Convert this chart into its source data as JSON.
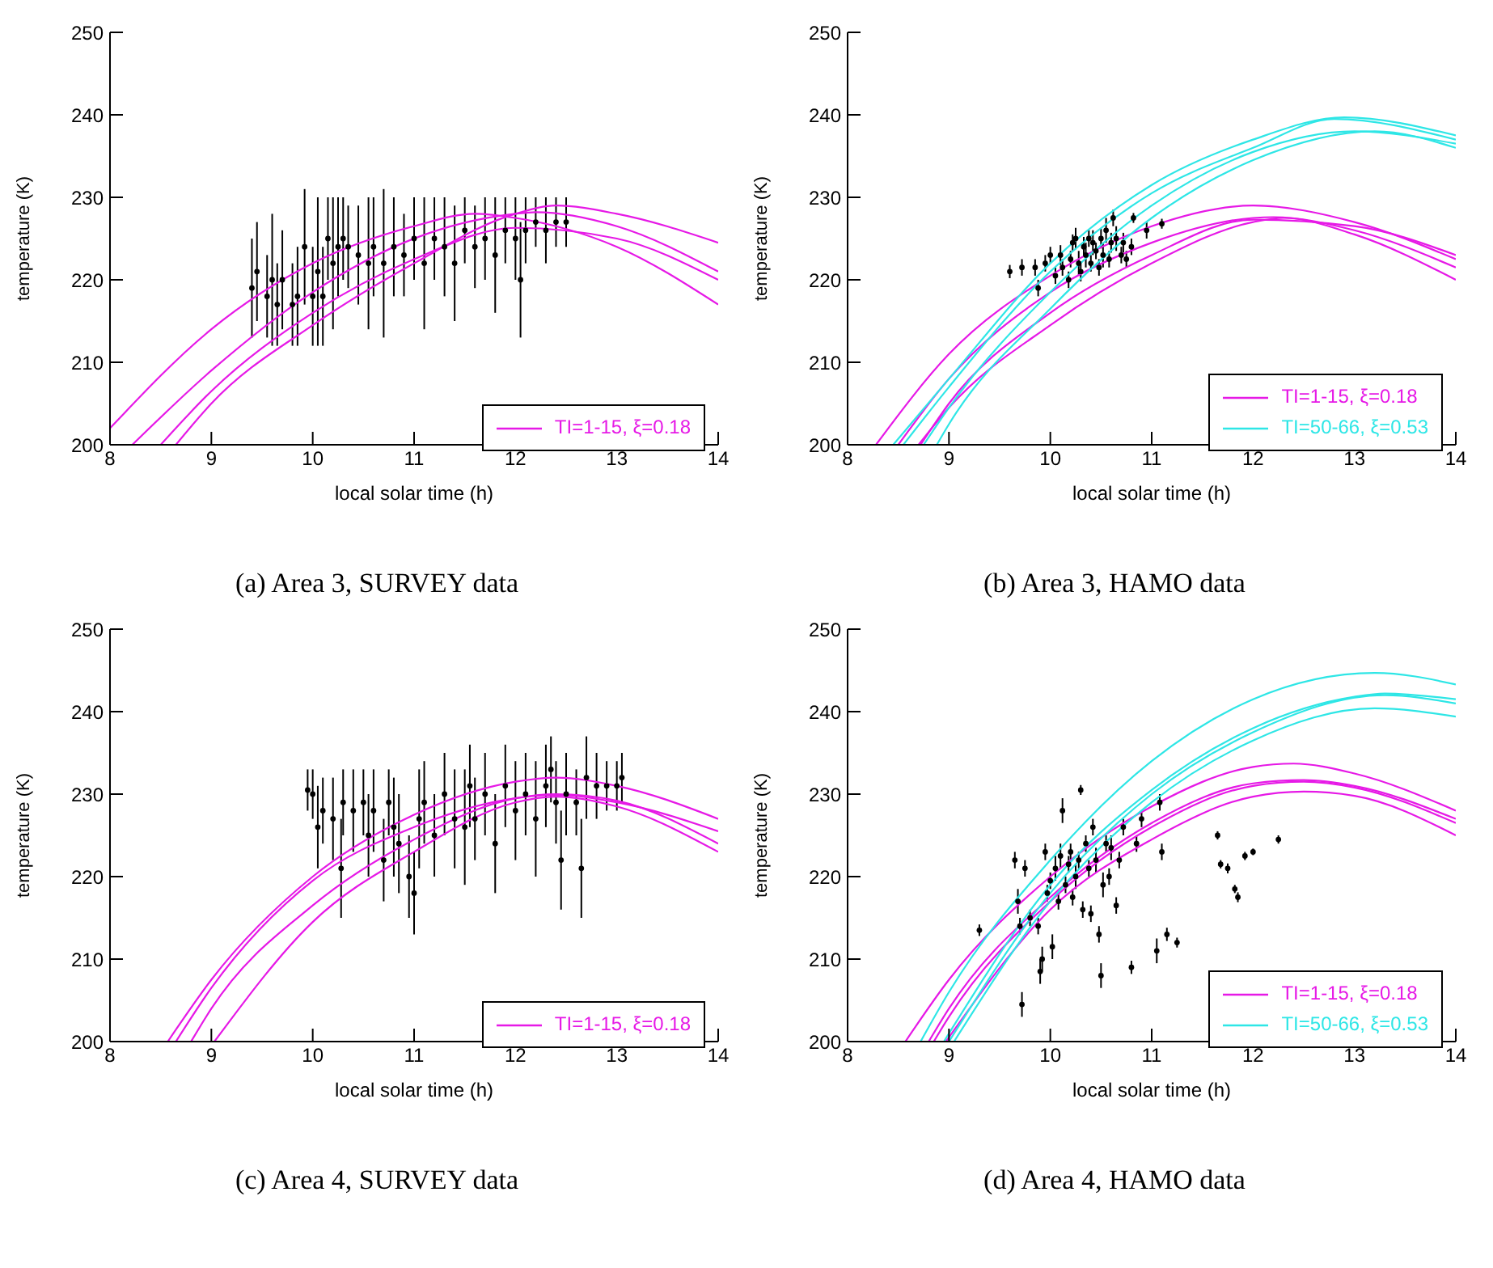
{
  "chart_data": [
    {
      "type": "line",
      "title": "(a) Area 3, SURVEY data",
      "xlabel": "local solar time (h)",
      "ylabel": "temperature (K)",
      "xlim": [
        8,
        14
      ],
      "ylim": [
        200,
        250
      ],
      "xticks": [
        8,
        9,
        10,
        11,
        12,
        13,
        14
      ],
      "yticks": [
        200,
        210,
        220,
        230,
        240,
        250
      ],
      "legend": "bottom right",
      "marker": "none",
      "series": [
        {
          "type": "scatter",
          "marker": "circle",
          "color": "#000000",
          "x": [
            9.4,
            9.45,
            9.55,
            9.6,
            9.65,
            9.7,
            9.8,
            9.85,
            9.92,
            10.0,
            10.05,
            10.1,
            10.15,
            10.2,
            10.25,
            10.3,
            10.35,
            10.45,
            10.55,
            10.6,
            10.7,
            10.8,
            10.9,
            11.0,
            11.1,
            11.2,
            11.3,
            11.4,
            11.5,
            11.6,
            11.7,
            11.8,
            11.9,
            12.0,
            12.05,
            12.1,
            12.2,
            12.3,
            12.4,
            12.5
          ],
          "values": [
            219,
            221,
            218,
            220,
            217,
            220,
            217,
            218,
            224,
            218,
            221,
            218,
            225,
            222,
            224,
            225,
            224,
            223,
            222,
            224,
            222,
            224,
            223,
            225,
            222,
            225,
            224,
            222,
            226,
            224,
            225,
            223,
            226,
            225,
            220,
            226,
            227,
            226,
            227,
            227
          ],
          "errors": [
            6,
            6,
            5,
            8,
            5,
            6,
            5,
            6,
            7,
            6,
            9,
            6,
            5,
            8,
            6,
            5,
            5,
            6,
            8,
            6,
            9,
            6,
            5,
            5,
            8,
            5,
            6,
            7,
            4,
            5,
            5,
            7,
            4,
            5,
            7,
            4,
            3,
            4,
            3,
            3
          ]
        },
        {
          "name": "TI=1-15, ξ=0.18",
          "color": "#e619e6",
          "x": [
            8,
            9,
            10,
            11,
            11.6,
            12,
            13,
            14
          ],
          "values": [
            202,
            214,
            222,
            226.5,
            228,
            227.5,
            224,
            217
          ]
        },
        {
          "color": "#e619e6",
          "x": [
            8.22,
            9,
            10,
            11,
            12,
            12.2,
            13,
            14
          ],
          "values": [
            200,
            209,
            218.5,
            225,
            228,
            228.2,
            226.5,
            221
          ]
        },
        {
          "color": "#e619e6",
          "x": [
            8.5,
            9,
            10,
            11,
            12,
            13,
            14
          ],
          "values": [
            200,
            206.5,
            216,
            222.5,
            226.3,
            225,
            220
          ]
        },
        {
          "color": "#e619e6",
          "x": [
            8.65,
            9,
            10,
            11,
            12,
            12.4,
            13,
            14
          ],
          "values": [
            200,
            205,
            214.5,
            222,
            228,
            229,
            228,
            224.5
          ]
        }
      ]
    },
    {
      "type": "line",
      "title": "(b) Area 3, HAMO data",
      "xlabel": "local solar time (h)",
      "ylabel": "temperature (K)",
      "xlim": [
        8,
        14
      ],
      "ylim": [
        200,
        250
      ],
      "xticks": [
        8,
        9,
        10,
        11,
        12,
        13,
        14
      ],
      "yticks": [
        200,
        210,
        220,
        230,
        240,
        250
      ],
      "legend": "bottom right",
      "marker": "none",
      "series": [
        {
          "type": "scatter",
          "marker": "circle",
          "color": "#000000",
          "x": [
            9.6,
            9.72,
            9.85,
            9.88,
            9.95,
            10.0,
            10.05,
            10.1,
            10.12,
            10.18,
            10.2,
            10.22,
            10.25,
            10.28,
            10.3,
            10.33,
            10.35,
            10.38,
            10.4,
            10.42,
            10.45,
            10.48,
            10.5,
            10.52,
            10.55,
            10.58,
            10.6,
            10.62,
            10.65,
            10.7,
            10.72,
            10.75,
            10.8,
            10.82,
            10.95,
            11.1
          ],
          "values": [
            221,
            221.5,
            221.5,
            219,
            222,
            223,
            220.5,
            223,
            221.5,
            220,
            222.5,
            224.5,
            225,
            222,
            221,
            224,
            223,
            225,
            222,
            224.5,
            223.5,
            221.5,
            225,
            223,
            226,
            222.5,
            224.5,
            227.5,
            225,
            223,
            224.5,
            222.5,
            224,
            227.5,
            226,
            226.8
          ],
          "errors": [
            0.8,
            1,
            1,
            1,
            1,
            1,
            1,
            1.2,
            1,
            1,
            1,
            1,
            1.3,
            1.5,
            1.2,
            1.2,
            1.5,
            1,
            1,
            1.5,
            1,
            1,
            1.2,
            1.5,
            1.5,
            1,
            1.2,
            1,
            1.5,
            1,
            1.2,
            1,
            1,
            0.6,
            1,
            0.6
          ]
        },
        {
          "name": "TI=1-15, ξ=0.18",
          "color": "#e619e6",
          "x": [
            8.28,
            9,
            10,
            11,
            12,
            13,
            14
          ],
          "values": [
            200,
            211,
            220.5,
            226.5,
            229,
            227,
            222.5
          ]
        },
        {
          "color": "#e619e6",
          "x": [
            8.5,
            9,
            10,
            11,
            12,
            12.2,
            13,
            14
          ],
          "values": [
            200,
            208,
            218.5,
            224.5,
            227.5,
            227.6,
            226,
            221.5
          ]
        },
        {
          "color": "#e619e6",
          "x": [
            8.72,
            9,
            10,
            11,
            12,
            13,
            14
          ],
          "values": [
            200,
            205,
            216,
            223,
            227.3,
            226.5,
            223
          ]
        },
        {
          "color": "#e619e6",
          "x": [
            8.7,
            9,
            10,
            11,
            12,
            12.3,
            13,
            14
          ],
          "values": [
            200,
            204.5,
            214.5,
            222,
            227,
            227.5,
            225.5,
            220
          ]
        },
        {
          "name": "TI=50-66, ξ=0.53",
          "color": "#2ee6e6",
          "x": [
            8.45,
            9,
            10,
            11,
            12,
            12.9,
            14
          ],
          "values": [
            200,
            208,
            222,
            231.5,
            237,
            239.7,
            237.5
          ]
        },
        {
          "color": "#2ee6e6",
          "x": [
            8.55,
            9,
            10,
            11,
            12,
            12.8,
            14
          ],
          "values": [
            200,
            207,
            221,
            230.5,
            236,
            239.5,
            237
          ]
        },
        {
          "color": "#2ee6e6",
          "x": [
            8.75,
            9,
            10,
            11,
            12,
            13,
            14
          ],
          "values": [
            200,
            204.5,
            218.5,
            229,
            235.5,
            238,
            236.5
          ]
        },
        {
          "color": "#2ee6e6",
          "x": [
            8.88,
            9,
            10,
            11,
            12,
            13.2,
            14
          ],
          "values": [
            200,
            202.5,
            216.5,
            227.5,
            234.5,
            238,
            236
          ]
        }
      ]
    },
    {
      "type": "line",
      "title": "(c) Area 4, SURVEY data",
      "xlabel": "local solar time (h)",
      "ylabel": "temperature (K)",
      "xlim": [
        8,
        14
      ],
      "ylim": [
        200,
        250
      ],
      "xticks": [
        8,
        9,
        10,
        11,
        12,
        13,
        14
      ],
      "yticks": [
        200,
        210,
        220,
        230,
        240,
        250
      ],
      "legend": "bottom right",
      "marker": "none",
      "series": [
        {
          "type": "scatter",
          "marker": "circle",
          "color": "#000000",
          "x": [
            9.95,
            10.0,
            10.05,
            10.1,
            10.2,
            10.28,
            10.3,
            10.4,
            10.5,
            10.55,
            10.6,
            10.7,
            10.75,
            10.8,
            10.85,
            10.95,
            11.0,
            11.05,
            11.1,
            11.2,
            11.3,
            11.4,
            11.5,
            11.55,
            11.6,
            11.7,
            11.8,
            11.9,
            12.0,
            12.1,
            12.2,
            12.3,
            12.35,
            12.4,
            12.45,
            12.5,
            12.6,
            12.65,
            12.7,
            12.8,
            12.9,
            13.0,
            13.05
          ],
          "values": [
            230.5,
            230,
            226,
            228,
            227,
            221,
            229,
            228,
            229,
            225,
            228,
            222,
            229,
            226,
            224,
            220,
            218,
            227,
            229,
            225,
            230,
            227,
            226,
            231,
            227,
            230,
            224,
            231,
            228,
            230,
            227,
            231,
            233,
            229,
            222,
            230,
            229,
            221,
            232,
            231,
            231,
            231,
            232
          ],
          "errors": [
            2.5,
            3,
            5,
            4,
            5,
            6,
            4,
            5,
            4,
            5,
            5,
            5,
            4,
            6,
            6,
            5,
            5,
            6,
            5,
            5,
            5,
            6,
            7,
            5,
            5,
            5,
            6,
            5,
            6,
            5,
            7,
            5,
            4,
            5,
            6,
            5,
            4,
            6,
            5,
            4,
            3,
            3,
            3
          ]
        },
        {
          "name": "TI=1-15, ξ=0.18",
          "color": "#e619e6",
          "x": [
            8.57,
            9,
            10,
            11,
            12,
            12.4,
            13,
            14
          ],
          "values": [
            200,
            207.5,
            220,
            227.5,
            231.5,
            232,
            231,
            227
          ]
        },
        {
          "color": "#e619e6",
          "x": [
            8.65,
            9,
            10,
            11,
            12,
            12.4,
            13,
            14
          ],
          "values": [
            200,
            206.5,
            219.5,
            226,
            229.5,
            229.9,
            229,
            225.5
          ]
        },
        {
          "color": "#e619e6",
          "x": [
            8.8,
            9,
            10,
            11,
            12,
            12.4,
            13,
            14
          ],
          "values": [
            200,
            204,
            216.5,
            224.5,
            229.5,
            230,
            229.2,
            224
          ]
        },
        {
          "color": "#e619e6",
          "x": [
            9.03,
            10,
            11,
            12,
            12.4,
            13,
            14
          ],
          "values": [
            200,
            214.5,
            223,
            229,
            229.7,
            228.5,
            223
          ]
        }
      ]
    },
    {
      "type": "line",
      "title": "(d) Area 4, HAMO data",
      "xlabel": "local solar time (h)",
      "ylabel": "temperature (K)",
      "xlim": [
        8,
        14
      ],
      "ylim": [
        200,
        250
      ],
      "xticks": [
        8,
        9,
        10,
        11,
        12,
        13,
        14
      ],
      "yticks": [
        200,
        210,
        220,
        230,
        240,
        250
      ],
      "legend": "bottom right",
      "marker": "none",
      "series": [
        {
          "type": "scatter",
          "marker": "circle",
          "color": "#000000",
          "x": [
            9.3,
            9.65,
            9.68,
            9.7,
            9.72,
            9.75,
            9.8,
            9.88,
            9.9,
            9.92,
            9.95,
            9.97,
            10.0,
            10.02,
            10.05,
            10.08,
            10.1,
            10.12,
            10.15,
            10.18,
            10.2,
            10.22,
            10.25,
            10.28,
            10.3,
            10.32,
            10.35,
            10.38,
            10.4,
            10.42,
            10.45,
            10.48,
            10.5,
            10.52,
            10.55,
            10.58,
            10.6,
            10.65,
            10.68,
            10.72,
            10.8,
            10.85,
            10.9,
            11.05,
            11.08,
            11.1,
            11.15,
            11.25,
            11.65,
            11.68,
            11.75,
            11.82,
            11.85,
            11.92,
            12.0,
            12.25
          ],
          "values": [
            213.5,
            222,
            217,
            214,
            204.5,
            221,
            215,
            214,
            208.5,
            210,
            223,
            218,
            219.5,
            211.5,
            221,
            217,
            222.5,
            228,
            219,
            221.5,
            223,
            217.5,
            220,
            222,
            230.5,
            216,
            224,
            221,
            215.5,
            226,
            222,
            213,
            208,
            219,
            224,
            220,
            223.5,
            216.5,
            222,
            226,
            209,
            224,
            227,
            211,
            229,
            223,
            213,
            212,
            225,
            221.5,
            221,
            218.5,
            217.5,
            222.5,
            223,
            224.5
          ],
          "errors": [
            0.7,
            1,
            1.5,
            1,
            1.5,
            1,
            1,
            1,
            1.5,
            1.5,
            1,
            1,
            1,
            1.5,
            1.5,
            1,
            1.5,
            1.5,
            1,
            1,
            1,
            1,
            1.5,
            1,
            0.6,
            1,
            1,
            1,
            1,
            1,
            1.5,
            1,
            1.5,
            1.5,
            1,
            1,
            1.5,
            1,
            1,
            1,
            0.8,
            1,
            1,
            1.5,
            1,
            1,
            0.8,
            0.6,
            0.5,
            0.5,
            0.6,
            0.5,
            0.6,
            0.5,
            0.4,
            0.5
          ]
        },
        {
          "name": "TI=1-15, ξ=0.18",
          "color": "#e619e6",
          "x": [
            8.57,
            9,
            10,
            11,
            12,
            12.4,
            13,
            14
          ],
          "values": [
            200,
            207.5,
            220,
            228.5,
            233.3,
            233.7,
            232.5,
            228
          ]
        },
        {
          "color": "#e619e6",
          "x": [
            8.8,
            9,
            10,
            11,
            12,
            12.5,
            13,
            14
          ],
          "values": [
            200,
            204,
            217.5,
            226.5,
            231.3,
            231.7,
            231,
            227
          ]
        },
        {
          "color": "#e619e6",
          "x": [
            8.85,
            9,
            10,
            11,
            12,
            12.5,
            13,
            14
          ],
          "values": [
            200,
            203,
            217,
            226,
            231,
            231.5,
            230.8,
            226.5
          ]
        },
        {
          "color": "#e619e6",
          "x": [
            8.97,
            10,
            11,
            12,
            12.5,
            13,
            14
          ],
          "values": [
            200,
            216,
            224.5,
            229.7,
            230.3,
            229.8,
            225
          ]
        },
        {
          "name": "TI=50-66, ξ=0.53",
          "color": "#2ee6e6",
          "x": [
            8.72,
            9,
            10,
            11,
            12,
            13.2,
            14
          ],
          "values": [
            200,
            206,
            222,
            234,
            241.5,
            244.7,
            243.3
          ]
        },
        {
          "color": "#2ee6e6",
          "x": [
            8.95,
            10,
            11,
            12,
            13,
            13.3,
            14
          ],
          "values": [
            200,
            219,
            230.5,
            238,
            241.8,
            242.2,
            241.5
          ]
        },
        {
          "color": "#2ee6e6",
          "x": [
            9.0,
            10,
            11,
            12,
            13.3,
            14
          ],
          "values": [
            200,
            218,
            230,
            237.5,
            242,
            241
          ]
        },
        {
          "color": "#2ee6e6",
          "x": [
            9.05,
            10,
            11,
            12,
            13.2,
            14
          ],
          "values": [
            200,
            217,
            229,
            236.5,
            240.4,
            239.4
          ]
        }
      ]
    }
  ]
}
